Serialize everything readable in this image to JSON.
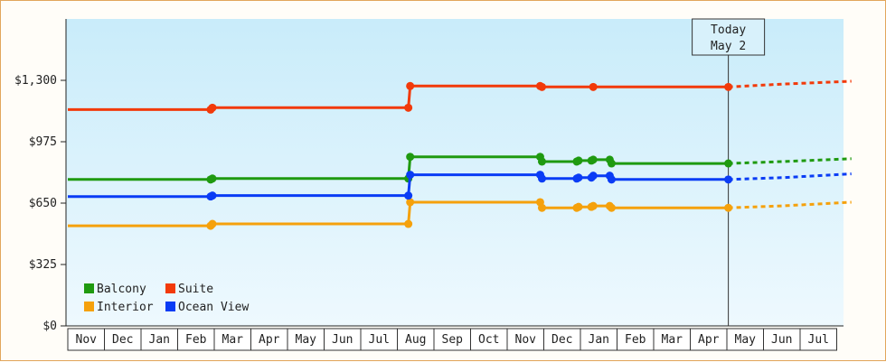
{
  "chart_data": {
    "type": "line",
    "step": true,
    "y_format": "currency",
    "ylim": [
      0,
      1625
    ],
    "yticks": [
      0,
      325,
      650,
      975,
      1300
    ],
    "ytick_labels": [
      "$0",
      "$325",
      "$650",
      "$975",
      "$1,300"
    ],
    "months": [
      "Nov",
      "Dec",
      "Jan",
      "Feb",
      "Mar",
      "Apr",
      "May",
      "Jun",
      "Jul",
      "Aug",
      "Sep",
      "Oct",
      "Nov",
      "Dec",
      "Jan",
      "Feb",
      "Mar",
      "Apr",
      "May",
      "Jun",
      "Jul"
    ],
    "xlim": [
      0,
      21.4
    ],
    "today": {
      "x": 18.04,
      "line1": "Today",
      "line2": "May 2"
    },
    "grid": false,
    "legend_position": "bottom-left",
    "series": [
      {
        "name": "Balcony",
        "color": "#1f9a10",
        "points": [
          [
            0,
            775
          ],
          [
            3.9,
            775
          ],
          [
            3.95,
            780
          ],
          [
            9.3,
            780
          ],
          [
            9.35,
            895
          ],
          [
            12.9,
            895
          ],
          [
            12.95,
            870
          ],
          [
            13.9,
            870
          ],
          [
            13.95,
            875
          ],
          [
            14.3,
            875
          ],
          [
            14.35,
            880
          ],
          [
            14.8,
            880
          ],
          [
            14.85,
            860
          ],
          [
            18.04,
            860
          ]
        ],
        "markers": [
          [
            3.9,
            775
          ],
          [
            3.95,
            780
          ],
          [
            9.3,
            780
          ],
          [
            9.35,
            895
          ],
          [
            12.9,
            895
          ],
          [
            12.95,
            870
          ],
          [
            13.9,
            870
          ],
          [
            13.95,
            875
          ],
          [
            14.3,
            875
          ],
          [
            14.35,
            880
          ],
          [
            14.8,
            880
          ],
          [
            14.85,
            860
          ],
          [
            18.04,
            860
          ]
        ],
        "projection": [
          [
            18.04,
            860
          ],
          [
            19.5,
            870
          ],
          [
            21.4,
            885
          ]
        ]
      },
      {
        "name": "Suite",
        "color": "#f23a0a",
        "points": [
          [
            0,
            1145
          ],
          [
            3.9,
            1145
          ],
          [
            3.95,
            1155
          ],
          [
            9.3,
            1155
          ],
          [
            9.35,
            1270
          ],
          [
            12.9,
            1270
          ],
          [
            12.95,
            1265
          ],
          [
            14.3,
            1265
          ],
          [
            14.35,
            1265
          ],
          [
            18.04,
            1265
          ]
        ],
        "markers": [
          [
            3.9,
            1145
          ],
          [
            3.95,
            1155
          ],
          [
            9.3,
            1155
          ],
          [
            9.35,
            1270
          ],
          [
            12.9,
            1270
          ],
          [
            12.95,
            1265
          ],
          [
            14.35,
            1265
          ],
          [
            18.04,
            1265
          ]
        ],
        "projection": [
          [
            18.04,
            1265
          ],
          [
            19.5,
            1280
          ],
          [
            21.4,
            1295
          ]
        ]
      },
      {
        "name": "Interior",
        "color": "#f5a10c",
        "points": [
          [
            0,
            530
          ],
          [
            3.9,
            530
          ],
          [
            3.95,
            540
          ],
          [
            9.3,
            540
          ],
          [
            9.35,
            655
          ],
          [
            12.9,
            655
          ],
          [
            12.95,
            625
          ],
          [
            13.9,
            625
          ],
          [
            13.95,
            630
          ],
          [
            14.3,
            630
          ],
          [
            14.35,
            635
          ],
          [
            14.8,
            635
          ],
          [
            14.85,
            625
          ],
          [
            18.04,
            625
          ]
        ],
        "markers": [
          [
            3.9,
            530
          ],
          [
            3.95,
            540
          ],
          [
            9.3,
            540
          ],
          [
            9.35,
            655
          ],
          [
            12.9,
            655
          ],
          [
            12.95,
            625
          ],
          [
            13.9,
            625
          ],
          [
            13.95,
            630
          ],
          [
            14.3,
            630
          ],
          [
            14.35,
            635
          ],
          [
            14.8,
            635
          ],
          [
            14.85,
            625
          ],
          [
            18.04,
            625
          ]
        ],
        "projection": [
          [
            18.04,
            625
          ],
          [
            19.5,
            635
          ],
          [
            21.4,
            655
          ]
        ]
      },
      {
        "name": "Ocean View",
        "color": "#0a3cf5",
        "points": [
          [
            0,
            685
          ],
          [
            3.9,
            685
          ],
          [
            3.95,
            690
          ],
          [
            9.3,
            690
          ],
          [
            9.35,
            800
          ],
          [
            12.9,
            800
          ],
          [
            12.95,
            780
          ],
          [
            13.9,
            780
          ],
          [
            13.95,
            785
          ],
          [
            14.3,
            785
          ],
          [
            14.35,
            795
          ],
          [
            14.8,
            795
          ],
          [
            14.85,
            775
          ],
          [
            18.04,
            775
          ]
        ],
        "markers": [
          [
            3.9,
            685
          ],
          [
            3.95,
            690
          ],
          [
            9.3,
            690
          ],
          [
            9.35,
            800
          ],
          [
            12.9,
            800
          ],
          [
            12.95,
            780
          ],
          [
            13.9,
            780
          ],
          [
            13.95,
            785
          ],
          [
            14.3,
            785
          ],
          [
            14.35,
            795
          ],
          [
            14.8,
            795
          ],
          [
            14.85,
            775
          ],
          [
            18.04,
            775
          ]
        ],
        "projection": [
          [
            18.04,
            775
          ],
          [
            19.5,
            785
          ],
          [
            21.4,
            805
          ]
        ]
      }
    ]
  }
}
